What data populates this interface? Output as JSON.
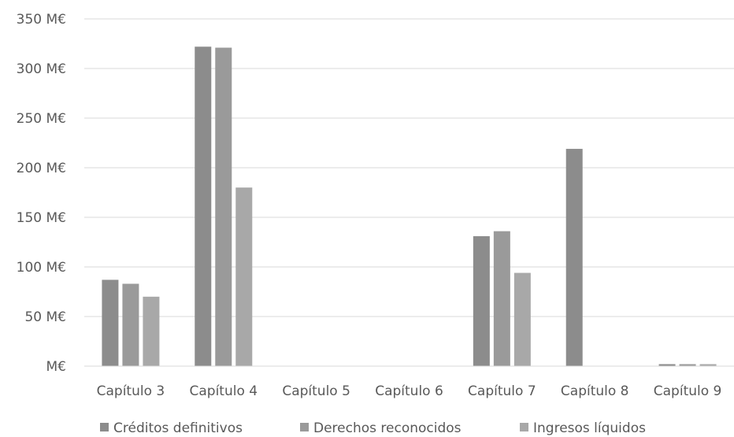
{
  "chart_data": {
    "type": "bar",
    "categories": [
      "Capítulo 3",
      "Capítulo 4",
      "Capítulo 5",
      "Capítulo 6",
      "Capítulo 7",
      "Capítulo 8",
      "Capítulo 9"
    ],
    "series": [
      {
        "name": "Créditos definitivos",
        "color": "#8c8c8c",
        "values": [
          87,
          322,
          0,
          0,
          131,
          219,
          2
        ]
      },
      {
        "name": "Derechos reconocidos",
        "color": "#9a9a9a",
        "values": [
          83,
          321,
          0,
          0,
          136,
          0,
          2
        ]
      },
      {
        "name": "Ingresos líquidos",
        "color": "#a8a8a8",
        "values": [
          70,
          180,
          0,
          0,
          94,
          0,
          2
        ]
      }
    ],
    "yticks": [
      "M€",
      "50 M€",
      "100 M€",
      "150 M€",
      "200 M€",
      "250 M€",
      "300 M€",
      "350 M€"
    ],
    "ylim": [
      0,
      350
    ],
    "grid": true,
    "legend_position": "bottom",
    "title": "",
    "xlabel": "",
    "ylabel": ""
  }
}
